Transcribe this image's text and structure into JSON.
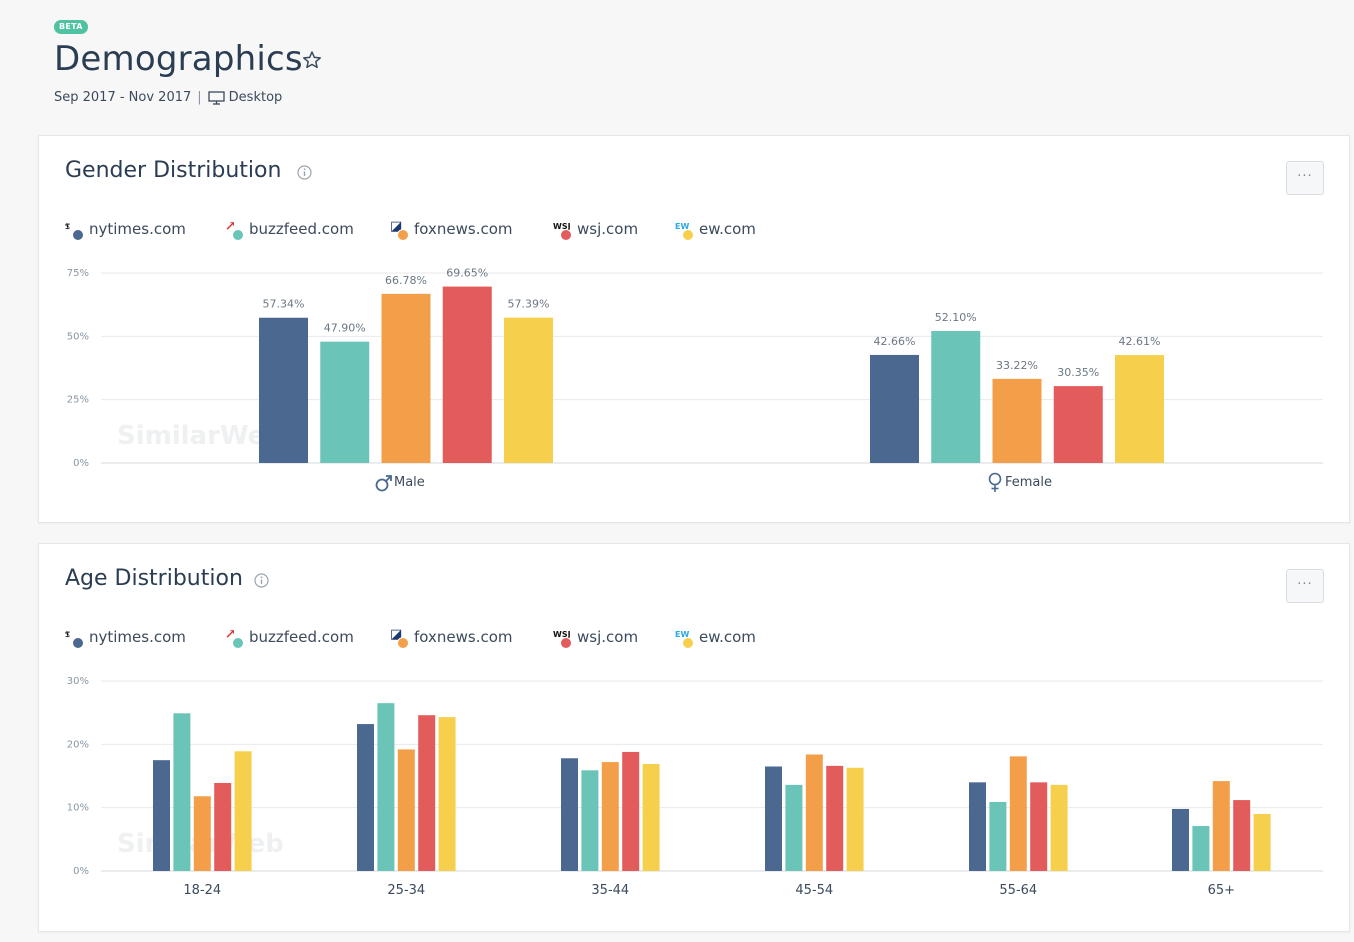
{
  "header": {
    "badge": "BETA",
    "title": "Demographics",
    "date_range": "Sep 2017 - Nov 2017",
    "separator": "|",
    "device": "Desktop"
  },
  "legend": [
    {
      "label": "nytimes.com",
      "color": "#4a6890",
      "logo": "nytimes-logo-icon",
      "glyph": "𝕿"
    },
    {
      "label": "buzzfeed.com",
      "color": "#6bc4b8",
      "logo": "buzzfeed-logo-icon",
      "glyph": "↗"
    },
    {
      "label": "foxnews.com",
      "color": "#f39f4a",
      "logo": "foxnews-logo-icon",
      "glyph": "◪"
    },
    {
      "label": "wsj.com",
      "color": "#e35c5c",
      "logo": "wsj-logo-icon",
      "glyph": "WSJ"
    },
    {
      "label": "ew.com",
      "color": "#f6d04d",
      "logo": "ew-logo-icon",
      "glyph": "EW"
    }
  ],
  "gender_card": {
    "title": "Gender Distribution",
    "more_label": "···",
    "watermark": "SimilarWeb",
    "chart_data": {
      "type": "bar",
      "categories": [
        "Male",
        "Female"
      ],
      "category_icons": [
        "male-icon",
        "female-icon"
      ],
      "y_ticks": [
        "0%",
        "25%",
        "50%",
        "75%"
      ],
      "ylim": [
        0,
        75
      ],
      "series": [
        {
          "name": "nytimes.com",
          "values": [
            57.34,
            42.66
          ],
          "labels": [
            "57.34%",
            "42.66%"
          ]
        },
        {
          "name": "buzzfeed.com",
          "values": [
            47.9,
            52.1
          ],
          "labels": [
            "47.90%",
            "52.10%"
          ]
        },
        {
          "name": "foxnews.com",
          "values": [
            66.78,
            33.22
          ],
          "labels": [
            "66.78%",
            "33.22%"
          ]
        },
        {
          "name": "wsj.com",
          "values": [
            69.65,
            30.35
          ],
          "labels": [
            "69.65%",
            "30.35%"
          ]
        },
        {
          "name": "ew.com",
          "values": [
            57.39,
            42.61
          ],
          "labels": [
            "57.39%",
            "42.61%"
          ]
        }
      ],
      "grid": true
    }
  },
  "age_card": {
    "title": "Age Distribution",
    "more_label": "···",
    "watermark": "SimilarWeb",
    "chart_data": {
      "type": "bar",
      "categories": [
        "18-24",
        "25-34",
        "35-44",
        "45-54",
        "55-64",
        "65+"
      ],
      "y_ticks": [
        "0%",
        "10%",
        "20%",
        "30%"
      ],
      "ylim": [
        0,
        30
      ],
      "series": [
        {
          "name": "nytimes.com",
          "values": [
            17.5,
            23.2,
            17.8,
            16.5,
            14.0,
            9.8
          ]
        },
        {
          "name": "buzzfeed.com",
          "values": [
            24.9,
            26.5,
            15.9,
            13.6,
            10.9,
            7.1
          ]
        },
        {
          "name": "foxnews.com",
          "values": [
            11.8,
            19.2,
            17.2,
            18.4,
            18.1,
            14.2
          ]
        },
        {
          "name": "wsj.com",
          "values": [
            13.9,
            24.6,
            18.8,
            16.6,
            14.0,
            11.2
          ]
        },
        {
          "name": "ew.com",
          "values": [
            18.9,
            24.3,
            16.9,
            16.3,
            13.6,
            9.0
          ]
        }
      ],
      "grid": true
    }
  }
}
